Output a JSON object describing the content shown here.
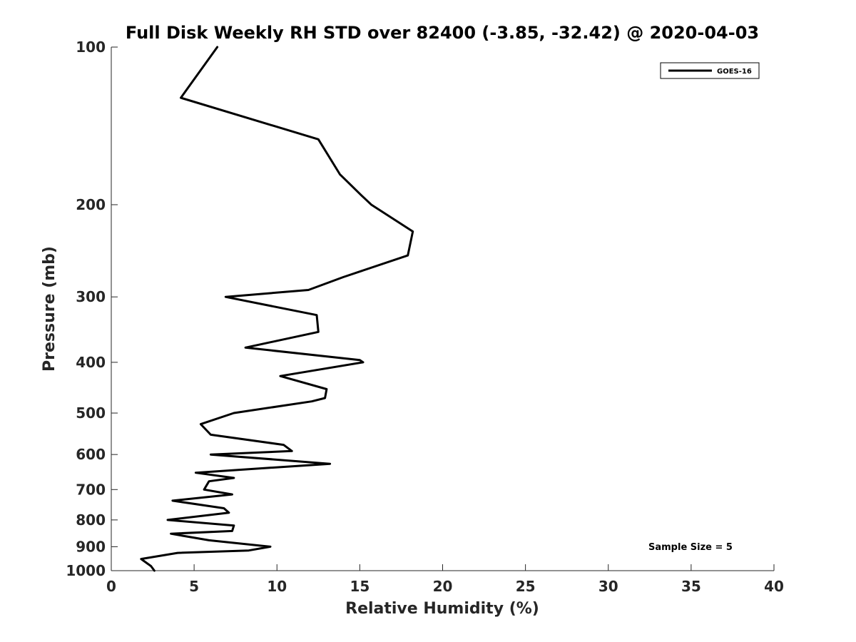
{
  "chart_data": {
    "type": "line",
    "title": "Full Disk Weekly RH STD over 82400 (-3.85, -32.42) @ 2020-04-03",
    "xlabel": "Relative Humidity (%)",
    "ylabel": "Pressure (mb)",
    "xlim": [
      0,
      40
    ],
    "ylim": [
      100,
      1000
    ],
    "yscale": "log",
    "y_reversed": true,
    "xticks": [
      0,
      5,
      10,
      15,
      20,
      25,
      30,
      35,
      40
    ],
    "yticks": [
      100,
      200,
      300,
      400,
      500,
      600,
      700,
      800,
      900,
      1000
    ],
    "grid": false,
    "legend_position": "top-right",
    "annotation": "Sample Size = 5",
    "series": [
      {
        "name": "GOES-16",
        "color": "#000000",
        "points": [
          [
            6.4,
            100
          ],
          [
            4.2,
            125
          ],
          [
            12.5,
            150
          ],
          [
            13.8,
            175
          ],
          [
            15.1,
            192
          ],
          [
            15.7,
            200
          ],
          [
            18.2,
            225
          ],
          [
            17.9,
            250
          ],
          [
            14.0,
            275
          ],
          [
            11.9,
            291
          ],
          [
            6.9,
            300
          ],
          [
            12.4,
            325
          ],
          [
            12.5,
            350
          ],
          [
            8.1,
            375
          ],
          [
            15.0,
            396
          ],
          [
            15.2,
            400
          ],
          [
            10.2,
            425
          ],
          [
            13.0,
            450
          ],
          [
            12.9,
            468
          ],
          [
            12.1,
            475
          ],
          [
            7.4,
            500
          ],
          [
            5.4,
            525
          ],
          [
            6.0,
            550
          ],
          [
            10.4,
            575
          ],
          [
            10.9,
            591
          ],
          [
            6.0,
            600
          ],
          [
            13.2,
            625
          ],
          [
            5.1,
            650
          ],
          [
            7.4,
            665
          ],
          [
            5.9,
            675
          ],
          [
            5.6,
            700
          ],
          [
            7.3,
            715
          ],
          [
            3.7,
            735
          ],
          [
            6.8,
            760
          ],
          [
            7.1,
            775
          ],
          [
            3.4,
            800
          ],
          [
            7.4,
            820
          ],
          [
            7.3,
            840
          ],
          [
            3.6,
            850
          ],
          [
            5.9,
            875
          ],
          [
            9.6,
            900
          ],
          [
            8.3,
            915
          ],
          [
            4.0,
            925
          ],
          [
            1.8,
            950
          ],
          [
            2.4,
            980
          ],
          [
            2.6,
            1000
          ]
        ]
      }
    ]
  }
}
